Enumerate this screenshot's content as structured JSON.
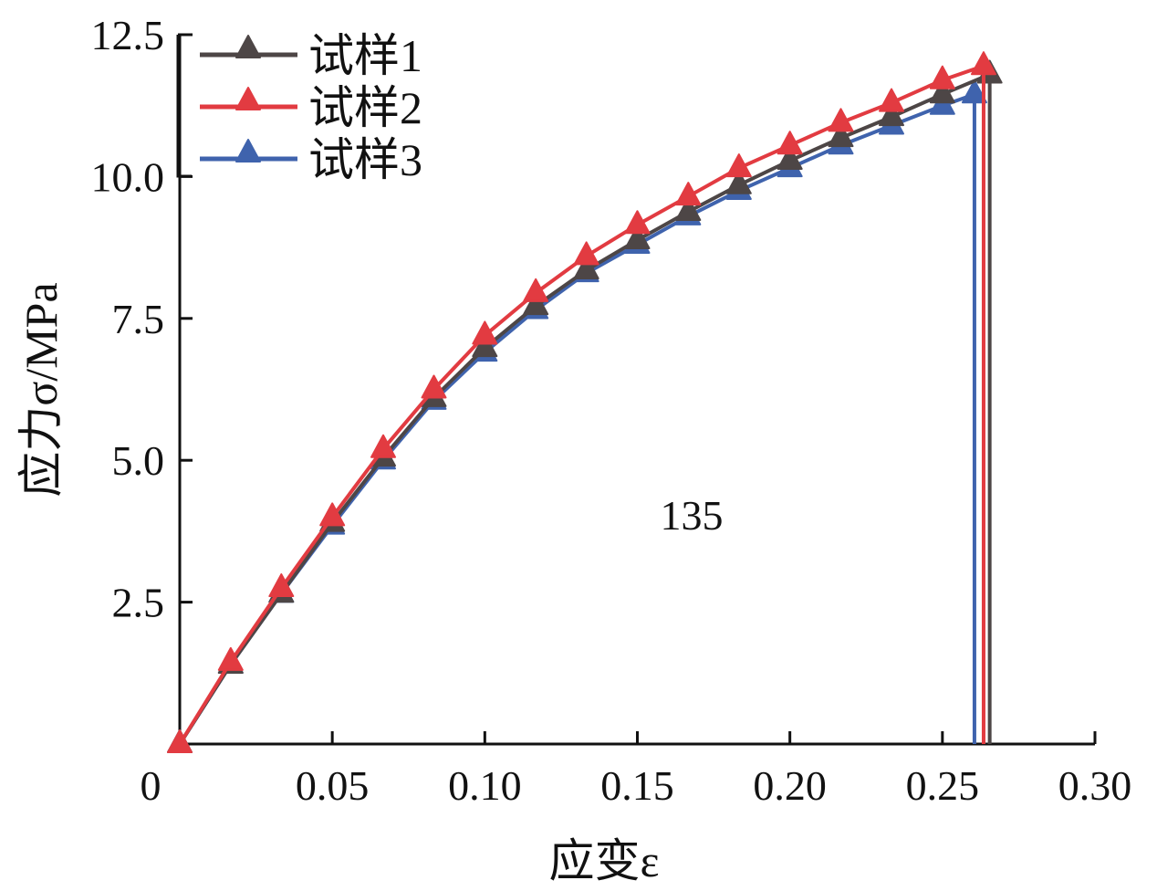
{
  "chart_data": {
    "type": "line",
    "title": "",
    "xlabel": "应变ε",
    "ylabel": "应力σ/MPa",
    "annotation": "135",
    "xlim": [
      0,
      0.3
    ],
    "ylim": [
      0,
      12.5
    ],
    "xticks": [
      0,
      0.05,
      0.1,
      0.15,
      0.2,
      0.25,
      0.3
    ],
    "xtick_labels": [
      "0",
      "0.05",
      "0.10",
      "0.15",
      "0.20",
      "0.25",
      "0.30"
    ],
    "yticks": [
      2.5,
      5.0,
      7.5,
      10.0,
      12.5
    ],
    "ytick_labels": [
      "2.5",
      "5.0",
      "7.5",
      "10.0",
      "12.5"
    ],
    "grid": false,
    "legend_position": "top-left",
    "marker": "triangle",
    "series": [
      {
        "name": "试样1",
        "color": "#4d4646",
        "x": [
          0,
          0.0167,
          0.0333,
          0.05,
          0.0667,
          0.0833,
          0.1,
          0.1167,
          0.1333,
          0.15,
          0.1667,
          0.1833,
          0.2,
          0.2167,
          0.2333,
          0.25,
          0.2655
        ],
        "y": [
          0,
          1.4,
          2.65,
          3.9,
          5.05,
          6.1,
          6.98,
          7.72,
          8.35,
          8.88,
          9.38,
          9.85,
          10.28,
          10.68,
          11.05,
          11.45,
          11.8
        ],
        "failure_strain": 0.2655
      },
      {
        "name": "试样2",
        "color": "#e23b41",
        "x": [
          0,
          0.0167,
          0.0333,
          0.05,
          0.0667,
          0.0833,
          0.1,
          0.1167,
          0.1333,
          0.15,
          0.1667,
          0.1833,
          0.2,
          0.2167,
          0.2333,
          0.25,
          0.2635
        ],
        "y": [
          0,
          1.45,
          2.75,
          4.0,
          5.2,
          6.25,
          7.2,
          7.95,
          8.6,
          9.15,
          9.65,
          10.15,
          10.55,
          10.95,
          11.3,
          11.7,
          11.95
        ],
        "failure_strain": 0.2635
      },
      {
        "name": "试样3",
        "color": "#3f63ad",
        "x": [
          0,
          0.0167,
          0.0333,
          0.05,
          0.0667,
          0.0833,
          0.1,
          0.1167,
          0.1333,
          0.15,
          0.1667,
          0.1833,
          0.2,
          0.2167,
          0.2333,
          0.25,
          0.2605
        ],
        "y": [
          0,
          1.4,
          2.65,
          3.85,
          5.0,
          6.05,
          6.9,
          7.65,
          8.3,
          8.8,
          9.3,
          9.75,
          10.15,
          10.55,
          10.9,
          11.25,
          11.45
        ],
        "failure_strain": 0.2605
      }
    ]
  }
}
